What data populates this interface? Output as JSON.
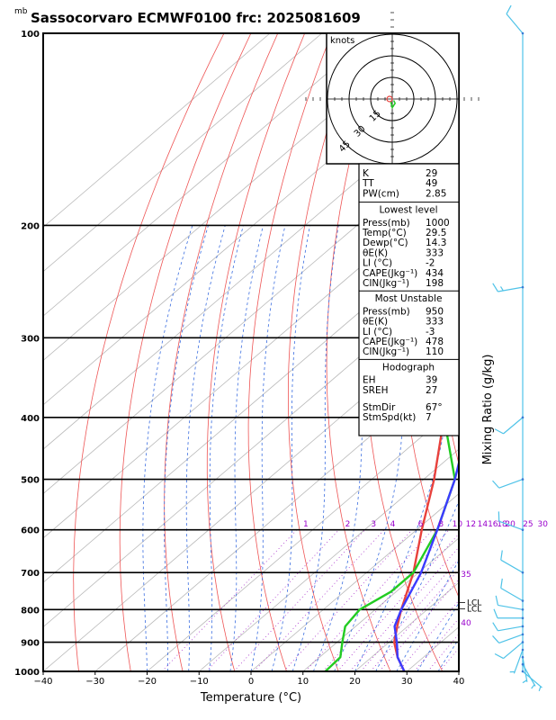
{
  "header": {
    "title": "Sassocorvaro ECMWF0100 frc: 2025081609",
    "unit_mb": "mb"
  },
  "chart_data": {
    "type": "line",
    "title": "Sassocorvaro ECMWF0100 frc: 2025081609",
    "xlabel": "Temperature (°C)",
    "ylabel": "mb",
    "right_label": "Mixing Ratio (g/kg)",
    "xlim": [
      -40,
      40
    ],
    "ylim": [
      1000,
      100
    ],
    "x_ticks": [
      -40,
      -30,
      -20,
      -10,
      0,
      10,
      20,
      30,
      40
    ],
    "p_ticks": [
      100,
      200,
      300,
      400,
      500,
      600,
      700,
      800,
      900,
      1000
    ],
    "mixing_ratio_labels": [
      "1",
      "2",
      "3",
      "4",
      "6",
      "8",
      "10",
      "12",
      "14",
      "16",
      "18",
      "20",
      "25",
      "30",
      "35",
      "40"
    ],
    "series": [
      {
        "key": "temperature",
        "color": "#e8413c",
        "points": [
          [
            1000,
            29.5
          ],
          [
            950,
            25
          ],
          [
            900,
            21
          ],
          [
            850,
            18
          ],
          [
            800,
            15
          ],
          [
            700,
            9
          ],
          [
            600,
            1
          ],
          [
            500,
            -8
          ],
          [
            400,
            -20
          ],
          [
            300,
            -33
          ],
          [
            250,
            -44
          ],
          [
            200,
            -50
          ],
          [
            150,
            -56
          ],
          [
            100,
            -62
          ]
        ]
      },
      {
        "key": "dewpoint",
        "color": "#22cc22",
        "points": [
          [
            1000,
            14.3
          ],
          [
            950,
            14
          ],
          [
            900,
            11
          ],
          [
            850,
            8
          ],
          [
            800,
            7
          ],
          [
            750,
            9
          ],
          [
            700,
            9
          ],
          [
            600,
            4
          ],
          [
            500,
            -4
          ],
          [
            400,
            -20
          ],
          [
            300,
            -42
          ],
          [
            250,
            -58
          ],
          [
            200,
            -60
          ],
          [
            150,
            -65
          ],
          [
            100,
            -70
          ]
        ]
      },
      {
        "key": "parcel",
        "color": "#3b3bff",
        "points": [
          [
            1000,
            29.5
          ],
          [
            950,
            25
          ],
          [
            900,
            21.5
          ],
          [
            850,
            17.5
          ],
          [
            800,
            15
          ],
          [
            700,
            10.5
          ],
          [
            600,
            4
          ],
          [
            500,
            -4
          ],
          [
            400,
            -15
          ],
          [
            300,
            -32
          ],
          [
            250,
            -44
          ],
          [
            200,
            -56
          ],
          [
            150,
            -68
          ],
          [
            100,
            -80
          ]
        ]
      }
    ],
    "lcl": {
      "p": 790,
      "labels": [
        "LCL",
        "LCL"
      ]
    },
    "wind_profile": [
      {
        "p": 100,
        "dir": 320,
        "kt": 10
      },
      {
        "p": 250,
        "dir": 260,
        "kt": 15
      },
      {
        "p": 400,
        "dir": 230,
        "kt": 10
      },
      {
        "p": 500,
        "dir": 250,
        "kt": 10
      },
      {
        "p": 600,
        "dir": 290,
        "kt": 10
      },
      {
        "p": 700,
        "dir": 300,
        "kt": 10
      },
      {
        "p": 775,
        "dir": 300,
        "kt": 10
      },
      {
        "p": 800,
        "dir": 280,
        "kt": 10
      },
      {
        "p": 825,
        "dir": 270,
        "kt": 10
      },
      {
        "p": 850,
        "dir": 260,
        "kt": 10
      },
      {
        "p": 875,
        "dir": 250,
        "kt": 10
      },
      {
        "p": 900,
        "dir": 230,
        "kt": 10
      },
      {
        "p": 925,
        "dir": 200,
        "kt": 5
      },
      {
        "p": 950,
        "dir": 170,
        "kt": 5
      },
      {
        "p": 975,
        "dir": 150,
        "kt": 5
      },
      {
        "p": 1000,
        "dir": 130,
        "kt": 5
      }
    ]
  },
  "hodograph": {
    "unit": "knots",
    "ring_labels": [
      "15",
      "30",
      "45"
    ],
    "ring_values": [
      15,
      30,
      45
    ],
    "trace": [
      [
        -1,
        -2
      ],
      [
        0,
        -6
      ],
      [
        2,
        -3
      ],
      [
        1,
        -1
      ]
    ]
  },
  "indices": {
    "general": [
      {
        "label": "K",
        "value": "29"
      },
      {
        "label": "TT",
        "value": "49"
      },
      {
        "label": "PW(cm)",
        "value": "2.85"
      }
    ],
    "lowest": {
      "title": "Lowest level",
      "rows": [
        {
          "label": "Press(mb)",
          "value": "1000"
        },
        {
          "label": "Temp(°C)",
          "value": "29.5"
        },
        {
          "label": "Dewp(°C)",
          "value": "14.3"
        },
        {
          "label": "θE(K)",
          "value": "333"
        },
        {
          "label": "LI (°C)",
          "value": "-2"
        },
        {
          "label": "CAPE(Jkg⁻¹)",
          "value": "434"
        },
        {
          "label": "CIN(Jkg⁻¹)",
          "value": "198"
        }
      ]
    },
    "unstable": {
      "title": "Most Unstable",
      "rows": [
        {
          "label": "Press(mb)",
          "value": "950"
        },
        {
          "label": "θE(K)",
          "value": "333"
        },
        {
          "label": "LI (°C)",
          "value": "-3"
        },
        {
          "label": "CAPE(Jkg⁻¹)",
          "value": "478"
        },
        {
          "label": "CIN(Jkg⁻¹)",
          "value": "110"
        }
      ]
    },
    "hodo": {
      "title": "Hodograph",
      "rows": [
        {
          "label": "EH",
          "value": "39"
        },
        {
          "label": "SREH",
          "value": "27"
        },
        {
          "label": "StmDir",
          "value": "67°"
        },
        {
          "label": "StmSpd(kt)",
          "value": "7"
        }
      ]
    }
  }
}
